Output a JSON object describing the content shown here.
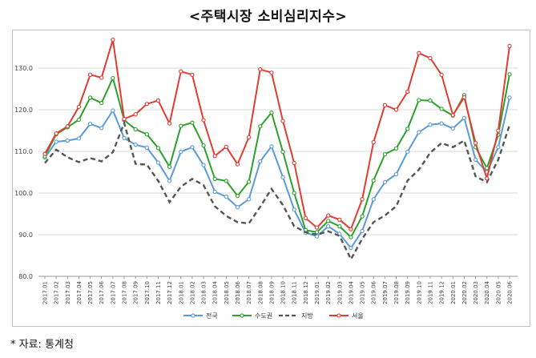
{
  "title": "<주택시장 소비심리지수>",
  "source": "* 자료: 통계청",
  "chart_data": {
    "type": "line",
    "title": "<주택시장 소비심리지수>",
    "xlabel": "",
    "ylabel": "",
    "ylim": [
      80,
      140
    ],
    "yticks": [
      "80.0",
      "90.0",
      "100.0",
      "110.0",
      "120.0",
      "130.0"
    ],
    "grid": true,
    "legend_position": "bottom",
    "x": [
      "2017.01",
      "2017.02",
      "2017.03",
      "2017.04",
      "2017.05",
      "2017.06",
      "2017.07",
      "2017.08",
      "2017.09",
      "2017.10",
      "2017.11",
      "2017.12",
      "2018.01",
      "2018.02",
      "2018.03",
      "2018.04",
      "2018.05",
      "2018.06",
      "2018.07",
      "2018.08",
      "2018.09",
      "2018.10",
      "2018.11",
      "2018.12",
      "2019.01",
      "2019.02",
      "2019.03",
      "2019.04",
      "2019.05",
      "2019.06",
      "2019.07",
      "2019.08",
      "2019.09",
      "2019.10",
      "2019.11",
      "2019.12",
      "2020.01",
      "2020.02",
      "2020.03",
      "2020.04",
      "2020.05",
      "2020.06"
    ],
    "series": [
      {
        "name": "전국",
        "color": "#5b9bd5",
        "style": "solid",
        "values": [
          108.5,
          112.3,
          112.6,
          113.1,
          116.6,
          115.6,
          119.8,
          113.2,
          111.6,
          110.9,
          107.3,
          102.9,
          109.9,
          111.0,
          106.7,
          100.3,
          99.1,
          96.6,
          98.5,
          107.6,
          111.2,
          103.8,
          96.0,
          90.5,
          89.6,
          92.0,
          90.2,
          86.8,
          90.9,
          98.5,
          102.6,
          104.5,
          109.9,
          114.6,
          116.4,
          116.7,
          115.5,
          118.0,
          108.0,
          105.0,
          111.0,
          122.9
        ]
      },
      {
        "name": "수도권",
        "color": "#2ca02c",
        "style": "solid",
        "values": [
          108.8,
          114.1,
          115.8,
          117.6,
          122.9,
          121.6,
          127.6,
          117.5,
          115.3,
          114.1,
          110.8,
          106.3,
          116.1,
          116.9,
          111.4,
          103.4,
          102.9,
          99.3,
          102.7,
          116.0,
          119.3,
          109.9,
          100.0,
          91.1,
          90.6,
          93.3,
          92.0,
          89.4,
          94.4,
          103.0,
          109.3,
          110.7,
          115.4,
          122.3,
          122.2,
          120.2,
          118.6,
          123.5,
          111.0,
          106.0,
          114.0,
          128.5
        ]
      },
      {
        "name": "지방",
        "color": "#555555",
        "style": "dashed",
        "values": [
          107.2,
          110.4,
          108.6,
          107.4,
          108.4,
          107.6,
          109.8,
          116.8,
          107.0,
          106.8,
          102.9,
          97.8,
          101.5,
          103.4,
          101.9,
          96.8,
          94.5,
          93.0,
          92.7,
          96.7,
          101.0,
          97.1,
          92.0,
          90.6,
          90.0,
          90.8,
          89.7,
          84.1,
          89.0,
          93.0,
          94.6,
          96.8,
          103.0,
          105.6,
          109.7,
          112.0,
          111.0,
          112.6,
          104.0,
          102.6,
          108.0,
          116.3
        ]
      },
      {
        "name": "서울",
        "color": "#e03c31",
        "style": "solid",
        "values": [
          109.4,
          114.3,
          116.0,
          120.7,
          128.4,
          127.7,
          136.8,
          117.8,
          118.9,
          121.4,
          122.2,
          116.7,
          129.2,
          128.4,
          117.5,
          108.9,
          111.1,
          106.9,
          113.4,
          129.7,
          128.9,
          117.3,
          107.2,
          94.0,
          91.7,
          94.6,
          93.6,
          91.3,
          98.5,
          112.2,
          121.1,
          120.0,
          124.3,
          133.6,
          132.4,
          128.4,
          118.7,
          123.0,
          112.0,
          103.5,
          115.0,
          135.3
        ]
      }
    ]
  }
}
